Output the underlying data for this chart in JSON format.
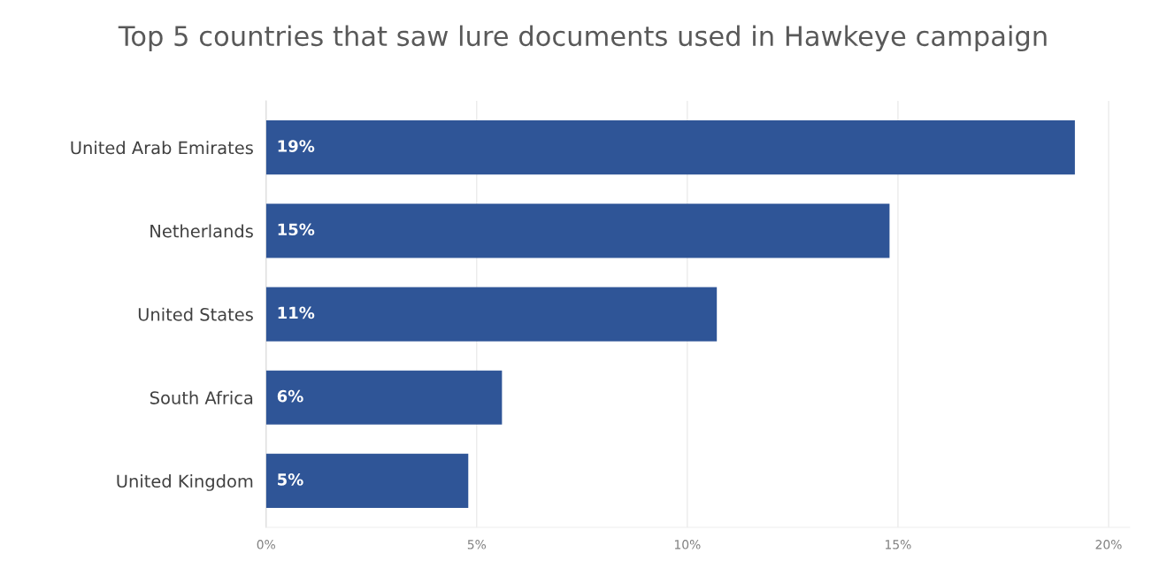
{
  "chart_data": {
    "type": "bar",
    "orientation": "horizontal",
    "title": "Top 5 countries that saw lure documents used in Hawkeye campaign",
    "categories": [
      "United Arab Emirates",
      "Netherlands",
      "United States",
      "South Africa",
      "United Kingdom"
    ],
    "values": [
      19.2,
      14.8,
      10.7,
      5.6,
      4.8
    ],
    "value_labels": [
      "19%",
      "15%",
      "11%",
      "6%",
      "5%"
    ],
    "color": "#2f5597",
    "xlim": [
      0,
      20.5
    ],
    "xticks": [
      {
        "value": 0,
        "label": "0%"
      },
      {
        "value": 5,
        "label": "5%"
      },
      {
        "value": 10,
        "label": "10%"
      },
      {
        "value": 15,
        "label": "15%"
      },
      {
        "value": 20,
        "label": "20%"
      }
    ],
    "grid": "x"
  }
}
